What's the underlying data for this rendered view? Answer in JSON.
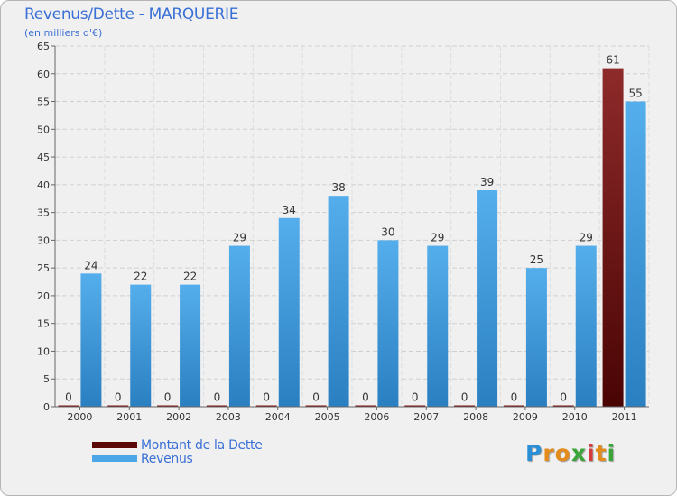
{
  "chart_data": {
    "type": "bar",
    "title": "Revenus/Dette - MARQUERIE",
    "subtitle": "(en milliers d'€)",
    "categories": [
      "2000",
      "2001",
      "2002",
      "2003",
      "2004",
      "2005",
      "2006",
      "2007",
      "2008",
      "2009",
      "2010",
      "2011"
    ],
    "series": [
      {
        "name": "Montant de la Dette",
        "values": [
          0,
          0,
          0,
          0,
          0,
          0,
          0,
          0,
          0,
          0,
          0,
          61
        ],
        "color": "#7a1010"
      },
      {
        "name": "Revenus",
        "values": [
          24,
          22,
          22,
          29,
          34,
          38,
          30,
          29,
          39,
          25,
          29,
          55
        ],
        "color": "#4da6e8"
      }
    ],
    "ylim": [
      0,
      65
    ],
    "yticks": [
      0,
      5,
      10,
      15,
      20,
      25,
      30,
      35,
      40,
      45,
      50,
      55,
      60,
      65
    ],
    "grid": true,
    "legend": "bottom-left"
  },
  "logo": {
    "letters": [
      "P",
      "r",
      "o",
      "x",
      "i",
      "t",
      "i"
    ],
    "colors": [
      "#2b8fd6",
      "#e38b1b",
      "#e38b1b",
      "#3aa63a",
      "#d63b3b",
      "#e38b1b",
      "#3aa63a"
    ]
  }
}
